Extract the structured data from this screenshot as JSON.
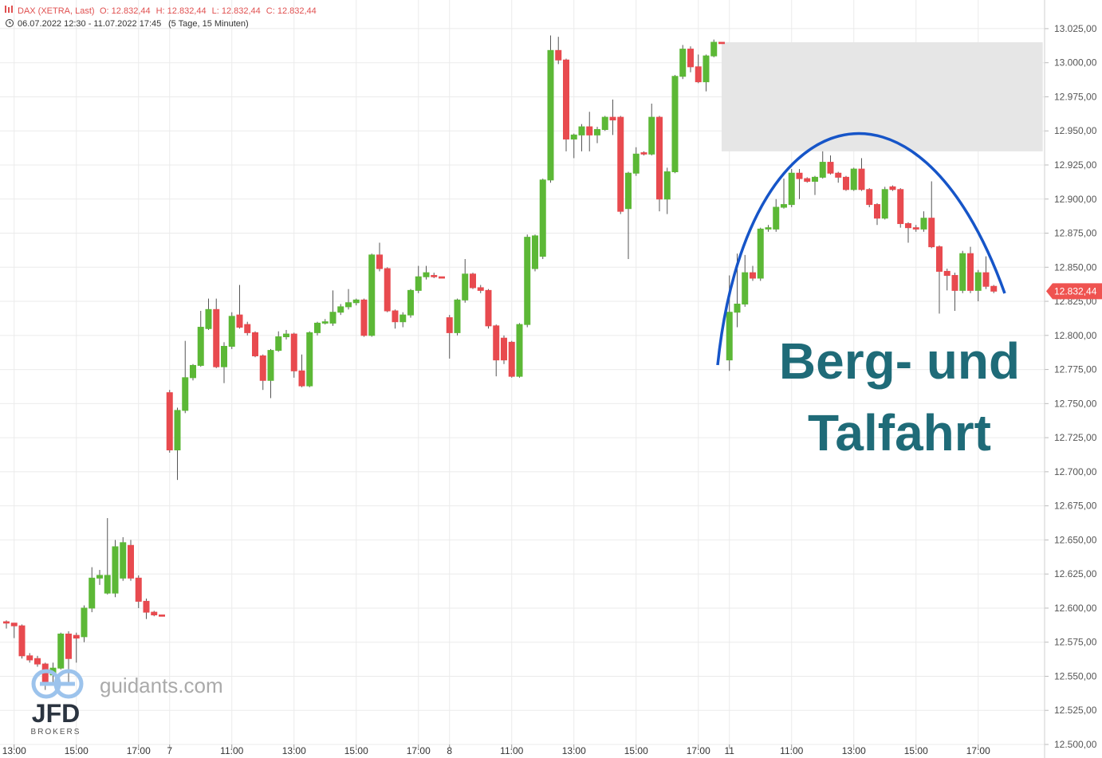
{
  "chart_data": {
    "type": "candlestick",
    "title": "DAX (XETRA, Last)",
    "quote": [
      "O: 12.832,44",
      "H: 12.832,44",
      "L: 12.832,44",
      "C: 12.832,44"
    ],
    "period": "06.07.2022 12:30 - 11.07.2022 17:45",
    "period_detail": "(5 Tage, 15 Minuten)",
    "annotation": [
      "Berg- und",
      "Talfahrt"
    ],
    "up_color": "#5cb836",
    "down_color": "#e84a4f",
    "wick_color": "#555555",
    "annotation_color": "#1f6b78",
    "curve_color": "#1655c8",
    "grid": true,
    "xlim": [
      -0.82,
      133.54
    ],
    "ylim": [
      12500,
      13046
    ],
    "xticks": [
      {
        "value": 1,
        "label": "13:00"
      },
      {
        "value": 9,
        "label": "15:00"
      },
      {
        "value": 17,
        "label": "17:00"
      },
      {
        "value": 21,
        "label": "7"
      },
      {
        "value": 29,
        "label": "11:00"
      },
      {
        "value": 37,
        "label": "13:00"
      },
      {
        "value": 45,
        "label": "15:00"
      },
      {
        "value": 53,
        "label": "17:00"
      },
      {
        "value": 57,
        "label": "8"
      },
      {
        "value": 65,
        "label": "11:00"
      },
      {
        "value": 73,
        "label": "13:00"
      },
      {
        "value": 81,
        "label": "15:00"
      },
      {
        "value": 89,
        "label": "17:00"
      },
      {
        "value": 93,
        "label": "11"
      },
      {
        "value": 101,
        "label": "11:00"
      },
      {
        "value": 109,
        "label": "13:00"
      },
      {
        "value": 117,
        "label": "15:00"
      },
      {
        "value": 125,
        "label": "17:00"
      }
    ],
    "yticks": [
      {
        "value": 12500,
        "label": "12.500,00"
      },
      {
        "value": 12525,
        "label": "12.525,00"
      },
      {
        "value": 12550,
        "label": "12.550,00"
      },
      {
        "value": 12575,
        "label": "12.575,00"
      },
      {
        "value": 12600,
        "label": "12.600,00"
      },
      {
        "value": 12625,
        "label": "12.625,00"
      },
      {
        "value": 12650,
        "label": "12.650,00"
      },
      {
        "value": 12675,
        "label": "12.675,00"
      },
      {
        "value": 12700,
        "label": "12.700,00"
      },
      {
        "value": 12725,
        "label": "12.725,00"
      },
      {
        "value": 12750,
        "label": "12.750,00"
      },
      {
        "value": 12775,
        "label": "12.775,00"
      },
      {
        "value": 12800,
        "label": "12.800,00"
      },
      {
        "value": 12825,
        "label": "12.825,00"
      },
      {
        "value": 12850,
        "label": "12.850,00"
      },
      {
        "value": 12875,
        "label": "12.875,00"
      },
      {
        "value": 12900,
        "label": "12.900,00"
      },
      {
        "value": 12925,
        "label": "12.925,00"
      },
      {
        "value": 12950,
        "label": "12.950,00"
      },
      {
        "value": 12975,
        "label": "12.975,00"
      },
      {
        "value": 13000,
        "label": "13.000,00"
      },
      {
        "value": 13025,
        "label": "13.025,00"
      }
    ],
    "last_price": {
      "value": 12832.44,
      "label": "12.832,44"
    },
    "zone": {
      "x": [
        92.0,
        133.3
      ],
      "y": [
        12935,
        13015
      ]
    },
    "x": [
      0,
      1,
      2,
      3,
      4,
      5,
      6,
      7,
      8,
      9,
      10,
      11,
      12,
      13,
      14,
      15,
      16,
      17,
      18,
      19,
      20,
      21,
      22,
      23,
      24,
      25,
      26,
      27,
      28,
      29,
      30,
      31,
      32,
      33,
      34,
      35,
      36,
      37,
      38,
      39,
      40,
      41,
      42,
      43,
      44,
      45,
      46,
      47,
      48,
      49,
      50,
      51,
      52,
      53,
      54,
      55,
      56,
      57,
      58,
      59,
      60,
      61,
      62,
      63,
      64,
      65,
      66,
      67,
      68,
      69,
      70,
      71,
      72,
      73,
      74,
      75,
      76,
      77,
      78,
      79,
      80,
      81,
      82,
      83,
      84,
      85,
      86,
      87,
      88,
      89,
      90,
      91,
      92,
      93,
      94,
      95,
      96,
      97,
      98,
      99,
      100,
      101,
      102,
      103,
      104,
      105,
      106,
      107,
      108,
      109,
      110,
      111,
      112,
      113,
      114,
      115,
      116,
      117,
      118,
      119,
      120,
      121,
      122,
      123,
      124,
      125,
      126,
      127
    ],
    "open": [
      12590,
      12589,
      12587,
      12565,
      12563,
      12559,
      12551,
      12556,
      12581,
      12580,
      12579,
      12600,
      12622,
      12611,
      12611,
      12622,
      12646,
      12622,
      12605,
      12597,
      12595,
      12758,
      12716,
      12745,
      12769,
      12778,
      12805,
      12819,
      12777,
      12792,
      12815,
      12808,
      12802,
      12785,
      12767,
      12789,
      12799,
      12801,
      12774,
      12763,
      12802,
      12809,
      12809,
      12817,
      12821,
      12824,
      12826,
      12800,
      12859,
      12849,
      12818,
      12810,
      12815,
      12833,
      12843,
      12844,
      12843,
      12813,
      12802,
      12826,
      12845,
      12835,
      12833,
      12807,
      12798,
      12795,
      12770,
      12808,
      12849,
      12858,
      12914,
      13009,
      13002,
      12944,
      12947,
      12953,
      12947,
      12951,
      12960,
      12960,
      12893,
      12919,
      12934,
      12933,
      12960,
      12900,
      12920,
      12990,
      13010,
      12997,
      12986,
      13005,
      13015,
      12782,
      12817,
      12823,
      12846,
      12842,
      12878,
      12878,
      12894,
      12896,
      12919,
      12915,
      12913,
      12916,
      12927,
      12919,
      12916,
      12907,
      12922,
      12907,
      12896,
      12886,
      12909,
      12907,
      12882,
      12879,
      12878,
      12886,
      12865,
      12847,
      12844,
      12833,
      12860,
      12833,
      12846,
      12836
    ],
    "high": [
      12591,
      12589,
      12588,
      12567,
      12565,
      12560,
      12560,
      12582,
      12583,
      12582,
      12602,
      12630,
      12628,
      12666,
      12650,
      12652,
      12650,
      12624,
      12607,
      12598,
      12595,
      12760,
      12747,
      12796,
      12779,
      12818,
      12827,
      12827,
      12795,
      12817,
      12837,
      12810,
      12803,
      12786,
      12790,
      12803,
      12804,
      12802,
      12786,
      12803,
      12810,
      12812,
      12833,
      12823,
      12834,
      12827,
      12827,
      12860,
      12868,
      12850,
      12819,
      12817,
      12834,
      12851,
      12851,
      12846,
      12843,
      12815,
      12827,
      12856,
      12846,
      12837,
      12834,
      12808,
      12800,
      12796,
      12809,
      12874,
      12874,
      12915,
      13020,
      13019,
      13003,
      12948,
      12955,
      12964,
      12953,
      12961,
      12973,
      12961,
      12920,
      12938,
      12935,
      12970,
      12961,
      12923,
      12991,
      13013,
      13012,
      13006,
      13006,
      13017,
      13015,
      12844,
      12860,
      12859,
      12851,
      12879,
      12881,
      12900,
      12915,
      12922,
      12922,
      12916,
      12917,
      12935,
      12932,
      12920,
      12917,
      12923,
      12930,
      12908,
      12897,
      12909,
      12910,
      12908,
      12883,
      12881,
      12891,
      12913,
      12866,
      12849,
      12846,
      12862,
      12865,
      12848,
      12858,
      12837
    ],
    "low": [
      12585,
      12578,
      12563,
      12560,
      12557,
      12540,
      12545,
      12555,
      12545,
      12560,
      12575,
      12597,
      12617,
      12610,
      12608,
      12620,
      12620,
      12600,
      12592,
      12594,
      12594,
      12714,
      12694,
      12743,
      12767,
      12777,
      12804,
      12776,
      12765,
      12790,
      12805,
      12800,
      12784,
      12760,
      12754,
      12788,
      12797,
      12769,
      12762,
      12762,
      12800,
      12808,
      12807,
      12815,
      12819,
      12822,
      12799,
      12799,
      12847,
      12817,
      12805,
      12806,
      12813,
      12831,
      12841,
      12842,
      12842,
      12783,
      12800,
      12824,
      12834,
      12831,
      12805,
      12770,
      12779,
      12769,
      12769,
      12806,
      12847,
      12856,
      12912,
      12999,
      12935,
      12930,
      12935,
      12935,
      12941,
      12950,
      12947,
      12889,
      12856,
      12917,
      12932,
      12932,
      12891,
      12889,
      12919,
      12988,
      12993,
      12985,
      12979,
      13004,
      13014,
      12774,
      12806,
      12821,
      12840,
      12840,
      12876,
      12876,
      12893,
      12894,
      12900,
      12912,
      12903,
      12915,
      12918,
      12912,
      12906,
      12906,
      12906,
      12894,
      12881,
      12885,
      12906,
      12879,
      12868,
      12876,
      12876,
      12864,
      12816,
      12833,
      12818,
      12831,
      12831,
      12825,
      12834,
      12831
    ],
    "close": [
      12589,
      12587,
      12565,
      12562,
      12559,
      12546,
      12556,
      12581,
      12563,
      12578,
      12600,
      12622,
      12624,
      12624,
      12645,
      12648,
      12622,
      12605,
      12597,
      12595,
      12594,
      12716,
      12745,
      12769,
      12778,
      12806,
      12819,
      12777,
      12792,
      12814,
      12806,
      12802,
      12785,
      12767,
      12789,
      12799,
      12801,
      12774,
      12763,
      12802,
      12809,
      12810,
      12817,
      12821,
      12824,
      12826,
      12800,
      12859,
      12849,
      12818,
      12810,
      12815,
      12833,
      12843,
      12846,
      12843,
      12842,
      12802,
      12826,
      12845,
      12835,
      12833,
      12807,
      12782,
      12782,
      12770,
      12808,
      12872,
      12873,
      12914,
      13009,
      13002,
      12944,
      12947,
      12953,
      12947,
      12951,
      12960,
      12958,
      12891,
      12919,
      12933,
      12933,
      12960,
      12900,
      12920,
      12990,
      13010,
      12997,
      12986,
      13005,
      13015,
      13014,
      12817,
      12823,
      12846,
      12842,
      12878,
      12879,
      12894,
      12896,
      12919,
      12915,
      12913,
      12916,
      12927,
      12919,
      12916,
      12907,
      12922,
      12907,
      12896,
      12886,
      12907,
      12907,
      12882,
      12879,
      12878,
      12886,
      12865,
      12847,
      12844,
      12833,
      12860,
      12833,
      12846,
      12836,
      12832.44
    ]
  },
  "watermark": {
    "site": "guidants.com",
    "logo": "JFD",
    "logo_sub": "BROKERS"
  }
}
